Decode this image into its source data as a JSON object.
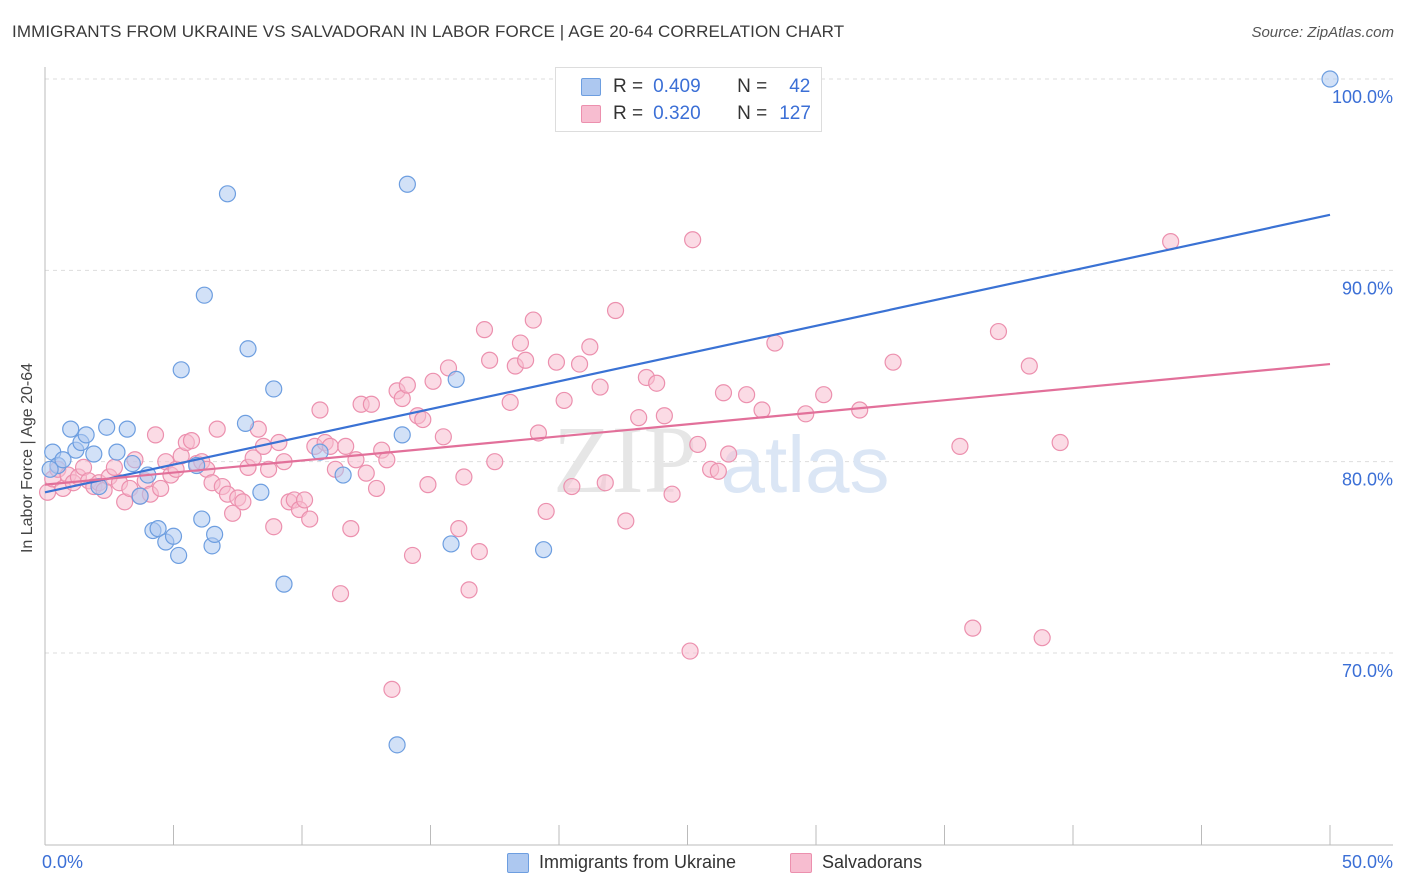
{
  "header": {
    "title": "IMMIGRANTS FROM UKRAINE VS SALVADORAN IN LABOR FORCE | AGE 20-64 CORRELATION CHART",
    "source": "Source: ZipAtlas.com"
  },
  "colors": {
    "ukraine_fill": "#adc8f0",
    "ukraine_stroke": "#6d9ee0",
    "ukraine_line": "#3a72d4",
    "salvadoran_fill": "#f7bdd0",
    "salvadoran_stroke": "#ec90ae",
    "salvadoran_line": "#e2709a",
    "axis_text": "#3b6fd6",
    "grid": "#dddddd"
  },
  "stats_box": {
    "rows": [
      {
        "r_label": "R =",
        "r_value": "0.409",
        "n_label": "N =",
        "n_value": "42"
      },
      {
        "r_label": "R =",
        "r_value": "0.320",
        "n_label": "N =",
        "n_value": "127"
      }
    ]
  },
  "legend": {
    "ukraine": "Immigrants from Ukraine",
    "salvadoran": "Salvadorans"
  },
  "watermark": {
    "zip": "ZIP",
    "atlas": "atlas"
  },
  "chart_data": {
    "type": "scatter",
    "title": "IMMIGRANTS FROM UKRAINE VS SALVADORAN IN LABOR FORCE | AGE 20-64 CORRELATION CHART",
    "xlabel": "",
    "ylabel": "In Labor Force | Age 20-64",
    "x_unit": "%",
    "y_unit": "%",
    "xlim": [
      0,
      50
    ],
    "ylim": [
      60,
      101
    ],
    "x_tick_labels": [
      "0.0%",
      "50.0%"
    ],
    "y_ticks": [
      100,
      90,
      80,
      70
    ],
    "y_tick_labels": [
      "100.0%",
      "90.0%",
      "80.0%",
      "70.0%"
    ],
    "grid": "horizontal dashed",
    "legend_position": "bottom",
    "series": [
      {
        "name": "Immigrants from Ukraine",
        "R": 0.409,
        "N": 42,
        "trend": {
          "x": [
            0,
            50
          ],
          "y": [
            78.4,
            92.9
          ]
        },
        "points": [
          [
            0.3,
            80.5
          ],
          [
            0.5,
            79.8
          ],
          [
            0.7,
            80.1
          ],
          [
            1.0,
            81.7
          ],
          [
            1.2,
            80.6
          ],
          [
            1.4,
            81.0
          ],
          [
            1.6,
            81.4
          ],
          [
            1.9,
            80.4
          ],
          [
            2.1,
            78.7
          ],
          [
            2.4,
            81.8
          ],
          [
            2.8,
            80.5
          ],
          [
            3.2,
            81.7
          ],
          [
            3.4,
            79.9
          ],
          [
            3.7,
            78.2
          ],
          [
            4.0,
            79.3
          ],
          [
            4.2,
            76.4
          ],
          [
            4.4,
            76.5
          ],
          [
            4.7,
            75.8
          ],
          [
            5.0,
            76.1
          ],
          [
            5.2,
            75.1
          ],
          [
            5.3,
            84.8
          ],
          [
            5.9,
            79.8
          ],
          [
            6.1,
            77.0
          ],
          [
            6.2,
            88.7
          ],
          [
            6.5,
            75.6
          ],
          [
            6.6,
            76.2
          ],
          [
            7.1,
            94.0
          ],
          [
            7.8,
            82.0
          ],
          [
            7.9,
            85.9
          ],
          [
            8.4,
            78.4
          ],
          [
            8.9,
            83.8
          ],
          [
            9.3,
            73.6
          ],
          [
            10.7,
            80.5
          ],
          [
            11.6,
            79.3
          ],
          [
            13.7,
            65.2
          ],
          [
            13.9,
            81.4
          ],
          [
            14.1,
            94.5
          ],
          [
            15.8,
            75.7
          ],
          [
            16.0,
            84.3
          ],
          [
            19.4,
            75.4
          ],
          [
            50.0,
            100.0
          ],
          [
            0.2,
            79.6
          ]
        ]
      },
      {
        "name": "Salvadorans",
        "R": 0.32,
        "N": 127,
        "trend": {
          "x": [
            0,
            50
          ],
          "y": [
            78.8,
            85.1
          ]
        },
        "points": [
          [
            0.1,
            78.4
          ],
          [
            0.3,
            79.1
          ],
          [
            0.5,
            79.6
          ],
          [
            0.7,
            78.6
          ],
          [
            0.9,
            79.3
          ],
          [
            1.1,
            78.9
          ],
          [
            1.3,
            79.2
          ],
          [
            1.5,
            79.7
          ],
          [
            1.7,
            79.0
          ],
          [
            1.9,
            78.7
          ],
          [
            2.1,
            78.9
          ],
          [
            2.3,
            78.5
          ],
          [
            2.5,
            79.2
          ],
          [
            2.7,
            79.7
          ],
          [
            2.9,
            78.9
          ],
          [
            3.1,
            77.9
          ],
          [
            3.3,
            78.6
          ],
          [
            3.5,
            80.1
          ],
          [
            3.7,
            78.2
          ],
          [
            3.9,
            79.0
          ],
          [
            4.1,
            78.3
          ],
          [
            4.3,
            81.4
          ],
          [
            4.5,
            78.6
          ],
          [
            4.7,
            80.0
          ],
          [
            4.9,
            79.3
          ],
          [
            5.1,
            79.6
          ],
          [
            5.3,
            80.3
          ],
          [
            5.5,
            81.0
          ],
          [
            5.7,
            81.1
          ],
          [
            5.9,
            79.9
          ],
          [
            6.1,
            80.0
          ],
          [
            6.3,
            79.6
          ],
          [
            6.5,
            78.9
          ],
          [
            6.7,
            81.7
          ],
          [
            6.9,
            78.7
          ],
          [
            7.1,
            78.3
          ],
          [
            7.3,
            77.3
          ],
          [
            7.5,
            78.1
          ],
          [
            7.7,
            77.9
          ],
          [
            7.9,
            79.7
          ],
          [
            8.1,
            80.2
          ],
          [
            8.3,
            81.7
          ],
          [
            8.5,
            80.8
          ],
          [
            8.7,
            79.6
          ],
          [
            8.9,
            76.6
          ],
          [
            9.1,
            81.0
          ],
          [
            9.3,
            80.0
          ],
          [
            9.5,
            77.9
          ],
          [
            9.7,
            78.0
          ],
          [
            9.9,
            77.5
          ],
          [
            10.1,
            78.0
          ],
          [
            10.3,
            77.0
          ],
          [
            10.5,
            80.8
          ],
          [
            10.7,
            82.7
          ],
          [
            10.9,
            81.0
          ],
          [
            11.1,
            80.8
          ],
          [
            11.3,
            79.6
          ],
          [
            11.5,
            73.1
          ],
          [
            11.7,
            80.8
          ],
          [
            11.9,
            76.5
          ],
          [
            12.1,
            80.1
          ],
          [
            12.3,
            83.0
          ],
          [
            12.5,
            79.4
          ],
          [
            12.7,
            83.0
          ],
          [
            12.9,
            78.6
          ],
          [
            13.1,
            80.6
          ],
          [
            13.3,
            80.1
          ],
          [
            13.5,
            68.1
          ],
          [
            13.7,
            83.7
          ],
          [
            13.9,
            83.3
          ],
          [
            14.1,
            84.0
          ],
          [
            14.3,
            75.1
          ],
          [
            14.5,
            82.4
          ],
          [
            14.7,
            82.2
          ],
          [
            14.9,
            78.8
          ],
          [
            15.1,
            84.2
          ],
          [
            15.5,
            81.3
          ],
          [
            15.7,
            84.9
          ],
          [
            16.1,
            76.5
          ],
          [
            16.3,
            79.2
          ],
          [
            16.5,
            73.3
          ],
          [
            16.9,
            75.3
          ],
          [
            17.1,
            86.9
          ],
          [
            17.3,
            85.3
          ],
          [
            17.5,
            80.0
          ],
          [
            18.1,
            83.1
          ],
          [
            18.3,
            85.0
          ],
          [
            18.5,
            86.2
          ],
          [
            18.7,
            85.3
          ],
          [
            19.0,
            87.4
          ],
          [
            19.2,
            81.5
          ],
          [
            19.5,
            77.4
          ],
          [
            19.9,
            85.2
          ],
          [
            20.2,
            83.2
          ],
          [
            20.5,
            78.7
          ],
          [
            20.8,
            85.1
          ],
          [
            21.2,
            86.0
          ],
          [
            21.6,
            83.9
          ],
          [
            21.8,
            78.9
          ],
          [
            22.2,
            87.9
          ],
          [
            22.6,
            76.9
          ],
          [
            23.1,
            82.3
          ],
          [
            23.4,
            84.4
          ],
          [
            23.8,
            84.1
          ],
          [
            24.1,
            82.4
          ],
          [
            24.4,
            78.3
          ],
          [
            25.1,
            70.1
          ],
          [
            25.2,
            91.6
          ],
          [
            25.4,
            80.9
          ],
          [
            25.9,
            79.6
          ],
          [
            26.2,
            79.5
          ],
          [
            26.4,
            83.6
          ],
          [
            26.6,
            80.4
          ],
          [
            27.3,
            83.5
          ],
          [
            27.9,
            82.7
          ],
          [
            28.4,
            86.2
          ],
          [
            29.6,
            82.5
          ],
          [
            30.3,
            83.5
          ],
          [
            31.7,
            82.7
          ],
          [
            33.0,
            85.2
          ],
          [
            35.6,
            80.8
          ],
          [
            36.1,
            71.3
          ],
          [
            37.1,
            86.8
          ],
          [
            38.3,
            85.0
          ],
          [
            38.8,
            70.8
          ],
          [
            39.5,
            81.0
          ],
          [
            43.8,
            91.5
          ]
        ]
      }
    ]
  }
}
